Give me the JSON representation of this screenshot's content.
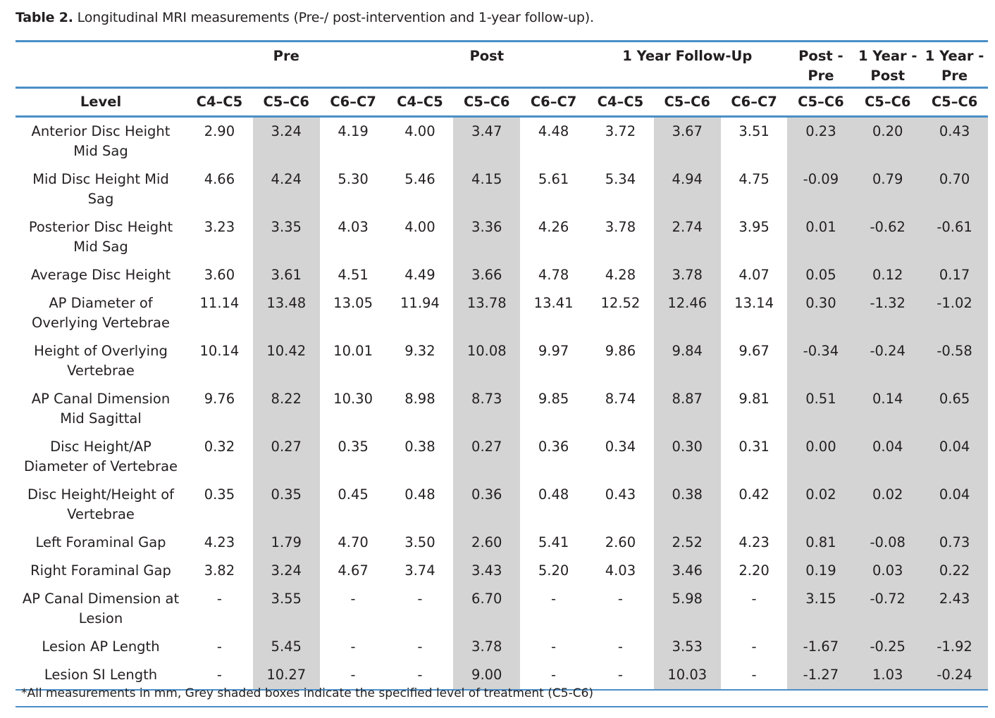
{
  "caption": {
    "label": "Table 2.",
    "text": " Longitudinal MRI measurements (Pre-/ post-intervention and 1-year follow-up)."
  },
  "group_headers": {
    "pre": "Pre",
    "post": "Post",
    "followup": "1 Year Follow-Up",
    "post_minus_pre_line1": "Post -",
    "post_minus_pre_line2": "Pre",
    "year_minus_post_line1": "1 Year -",
    "year_minus_post_line2": "Post",
    "year_minus_pre_line1": "1 Year -",
    "year_minus_pre_line2": "Pre"
  },
  "level_header": "Level",
  "columns": [
    "C4–C5",
    "C5–C6",
    "C6–C7",
    "C4–C5",
    "C5–C6",
    "C6–C7",
    "C4–C5",
    "C5–C6",
    "C6–C7",
    "C5–C6",
    "C5–C6",
    "C5–C6"
  ],
  "rows": [
    {
      "label": "Anterior Disc Height Mid Sag",
      "values": [
        "2.90",
        "3.24",
        "4.19",
        "4.00",
        "3.47",
        "4.48",
        "3.72",
        "3.67",
        "3.51",
        "0.23",
        "0.20",
        "0.43"
      ]
    },
    {
      "label": "Mid Disc Height Mid Sag",
      "values": [
        "4.66",
        "4.24",
        "5.30",
        "5.46",
        "4.15",
        "5.61",
        "5.34",
        "4.94",
        "4.75",
        "-0.09",
        "0.79",
        "0.70"
      ]
    },
    {
      "label": "Posterior Disc Height Mid Sag",
      "values": [
        "3.23",
        "3.35",
        "4.03",
        "4.00",
        "3.36",
        "4.26",
        "3.78",
        "2.74",
        "3.95",
        "0.01",
        "-0.62",
        "-0.61"
      ]
    },
    {
      "label": "Average Disc Height",
      "values": [
        "3.60",
        "3.61",
        "4.51",
        "4.49",
        "3.66",
        "4.78",
        "4.28",
        "3.78",
        "4.07",
        "0.05",
        "0.12",
        "0.17"
      ]
    },
    {
      "label": "AP Diameter of Overlying Vertebrae",
      "values": [
        "11.14",
        "13.48",
        "13.05",
        "11.94",
        "13.78",
        "13.41",
        "12.52",
        "12.46",
        "13.14",
        "0.30",
        "-1.32",
        "-1.02"
      ]
    },
    {
      "label": "Height of Overlying Vertebrae",
      "values": [
        "10.14",
        "10.42",
        "10.01",
        "9.32",
        "10.08",
        "9.97",
        "9.86",
        "9.84",
        "9.67",
        "-0.34",
        "-0.24",
        "-0.58"
      ]
    },
    {
      "label": "AP Canal Dimension Mid Sagittal",
      "values": [
        "9.76",
        "8.22",
        "10.30",
        "8.98",
        "8.73",
        "9.85",
        "8.74",
        "8.87",
        "9.81",
        "0.51",
        "0.14",
        "0.65"
      ]
    },
    {
      "label": "Disc Height/AP Diameter of Vertebrae",
      "values": [
        "0.32",
        "0.27",
        "0.35",
        "0.38",
        "0.27",
        "0.36",
        "0.34",
        "0.30",
        "0.31",
        "0.00",
        "0.04",
        "0.04"
      ]
    },
    {
      "label": "Disc Height/Height of Vertebrae",
      "values": [
        "0.35",
        "0.35",
        "0.45",
        "0.48",
        "0.36",
        "0.48",
        "0.43",
        "0.38",
        "0.42",
        "0.02",
        "0.02",
        "0.04"
      ]
    },
    {
      "label": "Left Foraminal Gap",
      "values": [
        "4.23",
        "1.79",
        "4.70",
        "3.50",
        "2.60",
        "5.41",
        "2.60",
        "2.52",
        "4.23",
        "0.81",
        "-0.08",
        "0.73"
      ]
    },
    {
      "label": "Right Foraminal Gap",
      "values": [
        "3.82",
        "3.24",
        "4.67",
        "3.74",
        "3.43",
        "5.20",
        "4.03",
        "3.46",
        "2.20",
        "0.19",
        "0.03",
        "0.22"
      ]
    },
    {
      "label": "AP Canal Dimension at Lesion",
      "values": [
        "-",
        "3.55",
        "-",
        "-",
        "6.70",
        "-",
        "-",
        "5.98",
        "-",
        "3.15",
        "-0.72",
        "2.43"
      ]
    },
    {
      "label": "Lesion AP Length",
      "values": [
        "-",
        "5.45",
        "-",
        "-",
        "3.78",
        "-",
        "-",
        "3.53",
        "-",
        "-1.67",
        "-0.25",
        "-1.92"
      ]
    },
    {
      "label": "Lesion SI Length",
      "values": [
        "-",
        "10.27",
        "-",
        "-",
        "9.00",
        "-",
        "-",
        "10.03",
        "-",
        "-1.27",
        "1.03",
        "-0.24"
      ]
    }
  ],
  "footnote": "*All measurements in mm, Grey shaded boxes indicate the specified level of treatment (C5-C6)",
  "colors": {
    "rule": "#4a8ec7",
    "shade": "#d4d4d4",
    "text": "#231f20"
  }
}
